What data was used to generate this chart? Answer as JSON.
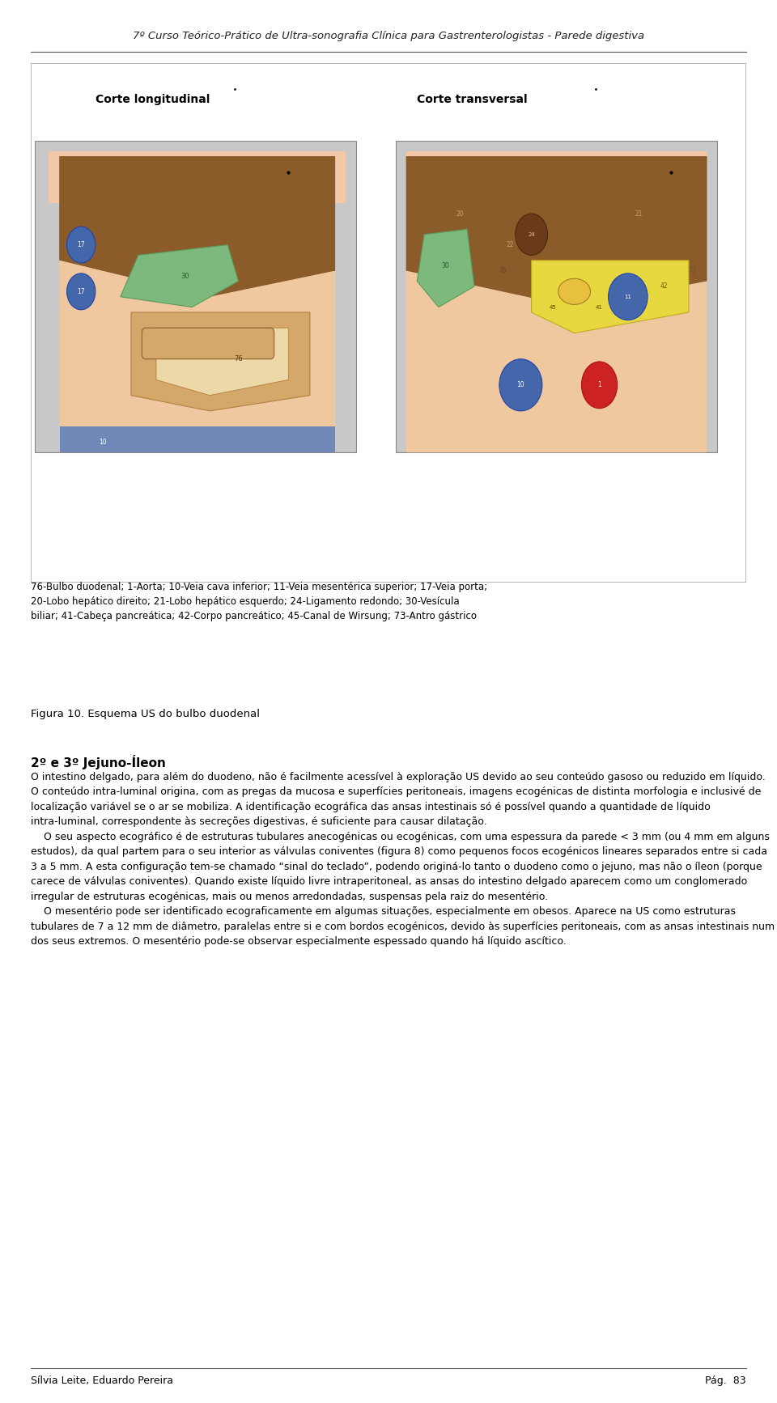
{
  "header": "7º Curso Teórico-Prático de Ultra-sonografia Clínica para Gastrenterologistas - Parede digestiva",
  "footer_left": "Sílvia Leite, Eduardo Pereira",
  "footer_right": "Pág.  83",
  "title_long": "Corte longitudinal",
  "title_trans": "Corte transversal",
  "caption": "76-Bulbo duodenal; 1-Aorta; 10-Veia cava inferior; 11-Veia mesentérica superior; 17-Veia porta;\n20-Lobo hepático direito; 21-Lobo hepático esquerdo; 24-Ligamento redondo; 30-Vesícula\nbiliar; 41-Cabeça pancreática; 42-Corpo pancreático; 45-Canal de Wirsung; 73-Antro gástrico",
  "fig_label": "Figura 10. Esquema US do bulbo duodenal",
  "section_title": "2º e 3º Jejuno-Íleon",
  "body_text": "O intestino delgado, para além do duodeno, não é facilmente acessível à exploração US devido ao seu conteúdo gasoso ou reduzido em líquido. O conteúdo intra-luminal origina, com as pregas da mucosa e superfícies peritoneais, imagens ecogénicas de distinta morfologia e inclusivé de localização variável se o ar se mobiliza. A identificação ecográfica das ansas intestinais só é possível quando a quantidade de líquido intra-luminal, correspondente às secreções digestivas, é suficiente para causar dilatação.\n    O seu aspecto ecográfico é de estruturas tubulares anecogénicas ou ecogénicas, com uma espessura da parede < 3 mm (ou 4 mm em alguns estudos), da qual partem para o seu interior as válvulas coniventes (figura 8) como pequenos focos ecogénicos lineares separados entre si cada 3 a 5 mm. A esta configuração tem-se chamado “sinal do teclado”, podendo originá-lo tanto o duodeno como o jejuno, mas não o íleon (porque carece de válvulas coniventes). Quando existe líquido livre intraperitoneal, as ansas do intestino delgado aparecem como um conglomerado irregular de estruturas ecogénicas, mais ou menos arredondadas, suspensas pela raiz do mesentério.\n    O mesentério pode ser identificado ecograficamente em algumas situações, especialmente em obesos. Aparece na US como estruturas tubulares de 7 a 12 mm de diâmetro, paralelas entre si e com bordos ecogénicos, devido às superfícies peritoneais, com as ansas intestinais num dos seus extremos. O mesentério pode-se observar especialmente espessado quando há líquido ascítico.",
  "bg_color": "#ffffff",
  "text_color": "#000000",
  "header_color": "#222222",
  "border_color": "#888888"
}
